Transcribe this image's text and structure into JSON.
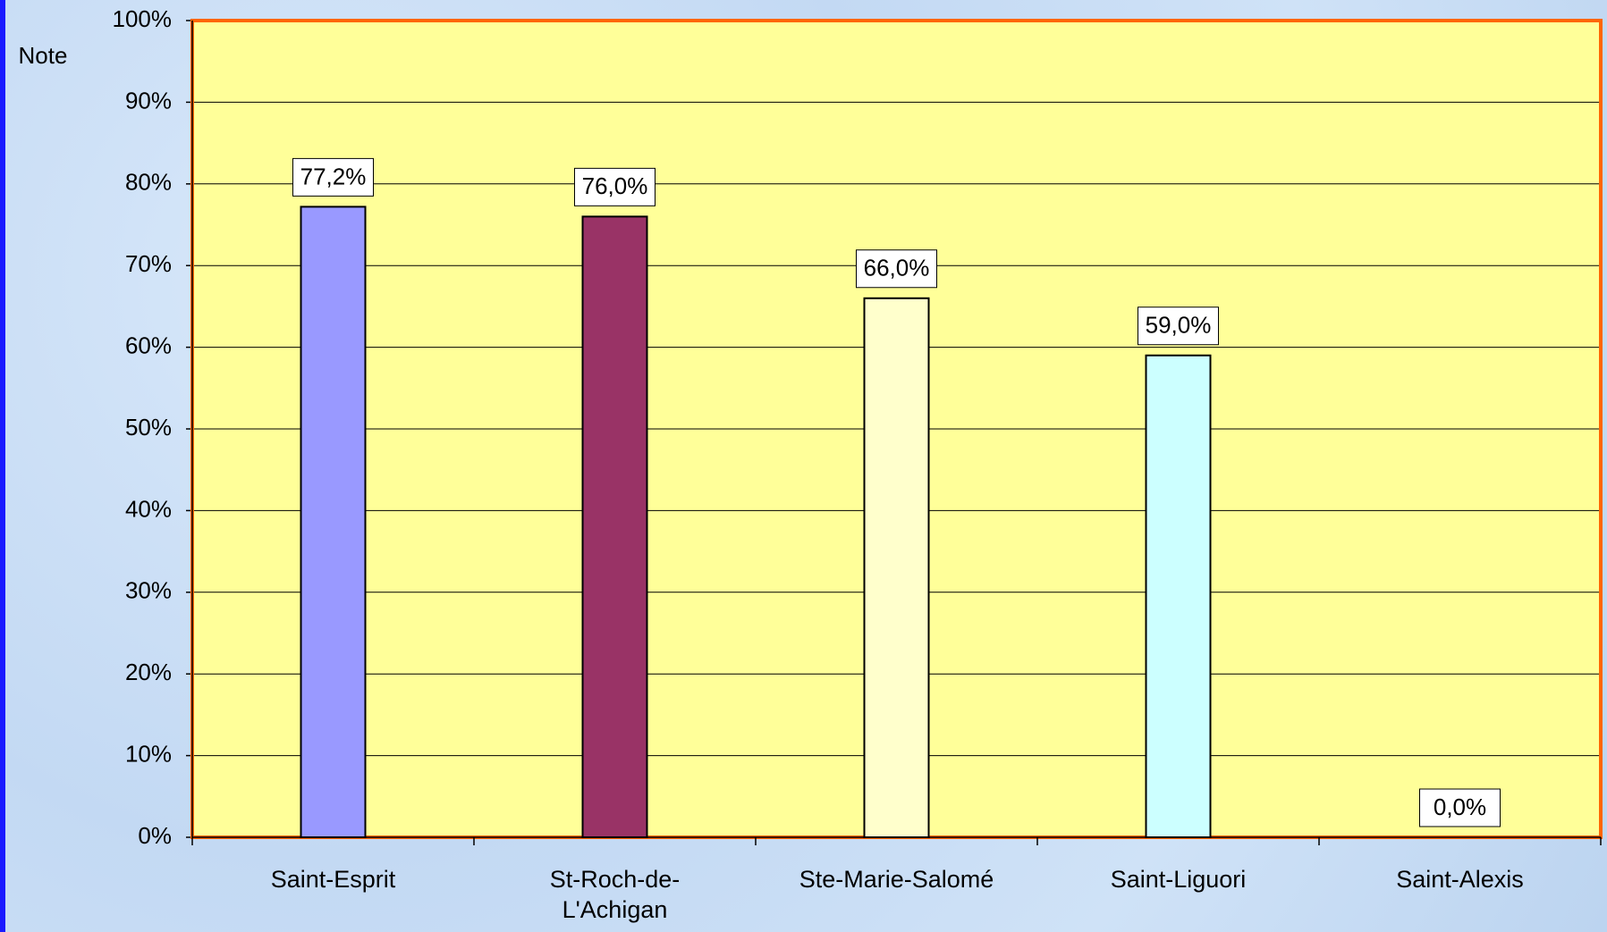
{
  "chart_data": {
    "type": "bar",
    "y_label": "Note",
    "categories": [
      "Saint-Esprit",
      "St-Roch-de-L'Achigan",
      "Ste-Marie-Salomé",
      "Saint-Liguori",
      "Saint-Alexis"
    ],
    "values": [
      77.2,
      76.0,
      66.0,
      59.0,
      0.0
    ],
    "value_labels": [
      "77,2%",
      "76,0%",
      "66,0%",
      "59,0%",
      "0,0%"
    ],
    "colors": [
      "#9999ff",
      "#993366",
      "#ffffcc",
      "#ccffff",
      "#660066"
    ],
    "ylim": [
      0,
      100
    ],
    "yticks": [
      {
        "value": 0,
        "label": "0%"
      },
      {
        "value": 10,
        "label": "10%"
      },
      {
        "value": 20,
        "label": "20%"
      },
      {
        "value": 30,
        "label": "30%"
      },
      {
        "value": 40,
        "label": "40%"
      },
      {
        "value": 50,
        "label": "50%"
      },
      {
        "value": 60,
        "label": "60%"
      },
      {
        "value": 70,
        "label": "70%"
      },
      {
        "value": 80,
        "label": "80%"
      },
      {
        "value": 90,
        "label": "90%"
      },
      {
        "value": 100,
        "label": "100%"
      }
    ],
    "grid": true
  }
}
